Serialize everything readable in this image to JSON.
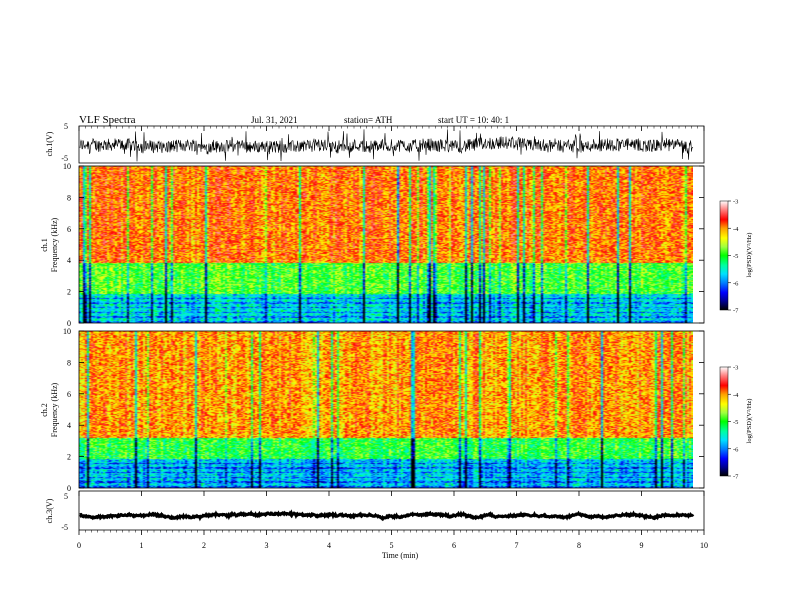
{
  "header": {
    "title": "VLF  Spectra",
    "date": "Jul.  31,  2021",
    "station": "station= ATH",
    "start": "start  UT  =    10: 40: 1"
  },
  "colors": {
    "scale": [
      "#ffffff",
      "#ff8080",
      "#ff0000",
      "#ffa000",
      "#ffff00",
      "#a0ff40",
      "#00ff00",
      "#00ffa0",
      "#00e0ff",
      "#0080ff",
      "#0000ff",
      "#00008f",
      "#000000"
    ]
  },
  "chart_data": [
    {
      "id": "ch1_waveform",
      "type": "line",
      "ylabel": "ch.1(V)",
      "ylim": [
        -5,
        5
      ],
      "yticks": [
        "5",
        "-5"
      ],
      "xlim": [
        0,
        10
      ],
      "approx_series": {
        "name": "",
        "mean": -0.3,
        "typical_range": [
          -2,
          1.5
        ],
        "spike_range": [
          -4.5,
          4.5
        ]
      }
    },
    {
      "id": "ch1_spectrogram",
      "type": "heatmap",
      "ylabel": "ch.1\nFrequency  (kHz)",
      "ylabel_lines": [
        "ch.1",
        "Frequency  (kHz)"
      ],
      "ylim": [
        0,
        10
      ],
      "yticks": [
        "0",
        "2",
        "4",
        "6",
        "8",
        "10"
      ],
      "xlim": [
        0,
        9.8
      ],
      "colorbar": {
        "label": "log(PSD)(V²/Hz)",
        "range": [
          -7,
          -3
        ],
        "ticks": [
          "-3",
          "-4",
          "-5",
          "-6",
          "-7"
        ]
      },
      "approx_bands_khz": [
        {
          "from": 0,
          "to": 1.8,
          "level": -5.6
        },
        {
          "from": 1.8,
          "to": 3.8,
          "level": -4.9
        },
        {
          "from": 3.8,
          "to": 10,
          "level": -3.9
        }
      ]
    },
    {
      "id": "ch2_spectrogram",
      "type": "heatmap",
      "ylabel": "ch.2\nFrequency  (kHz)",
      "ylabel_lines": [
        "ch.2",
        "Frequency  (kHz)"
      ],
      "ylim": [
        0,
        10
      ],
      "yticks": [
        "0",
        "2",
        "4",
        "6",
        "8",
        "10"
      ],
      "xlim": [
        0,
        9.8
      ],
      "colorbar": {
        "label": "log(PSD)(V²/Hz)",
        "range": [
          -7,
          -3
        ],
        "ticks": [
          "-3",
          "-4",
          "-5",
          "-6",
          "-7"
        ]
      },
      "approx_bands_khz": [
        {
          "from": 0,
          "to": 1.8,
          "level": -5.7
        },
        {
          "from": 1.8,
          "to": 3.2,
          "level": -5.0
        },
        {
          "from": 3.2,
          "to": 10,
          "level": -4.0
        }
      ]
    },
    {
      "id": "ch3_waveform",
      "type": "line",
      "ylabel": "ch.3(V)",
      "ylim": [
        -5,
        5
      ],
      "yticks": [
        "5",
        "-5"
      ],
      "xlabel": "Time  (min)",
      "xlim": [
        0,
        10
      ],
      "xticks": [
        "0",
        "1",
        "2",
        "3",
        "4",
        "5",
        "6",
        "7",
        "8",
        "9",
        "10"
      ],
      "approx_series": {
        "name": "",
        "mean": -1.3,
        "typical_range": [
          -1.6,
          -1.0
        ]
      }
    }
  ]
}
